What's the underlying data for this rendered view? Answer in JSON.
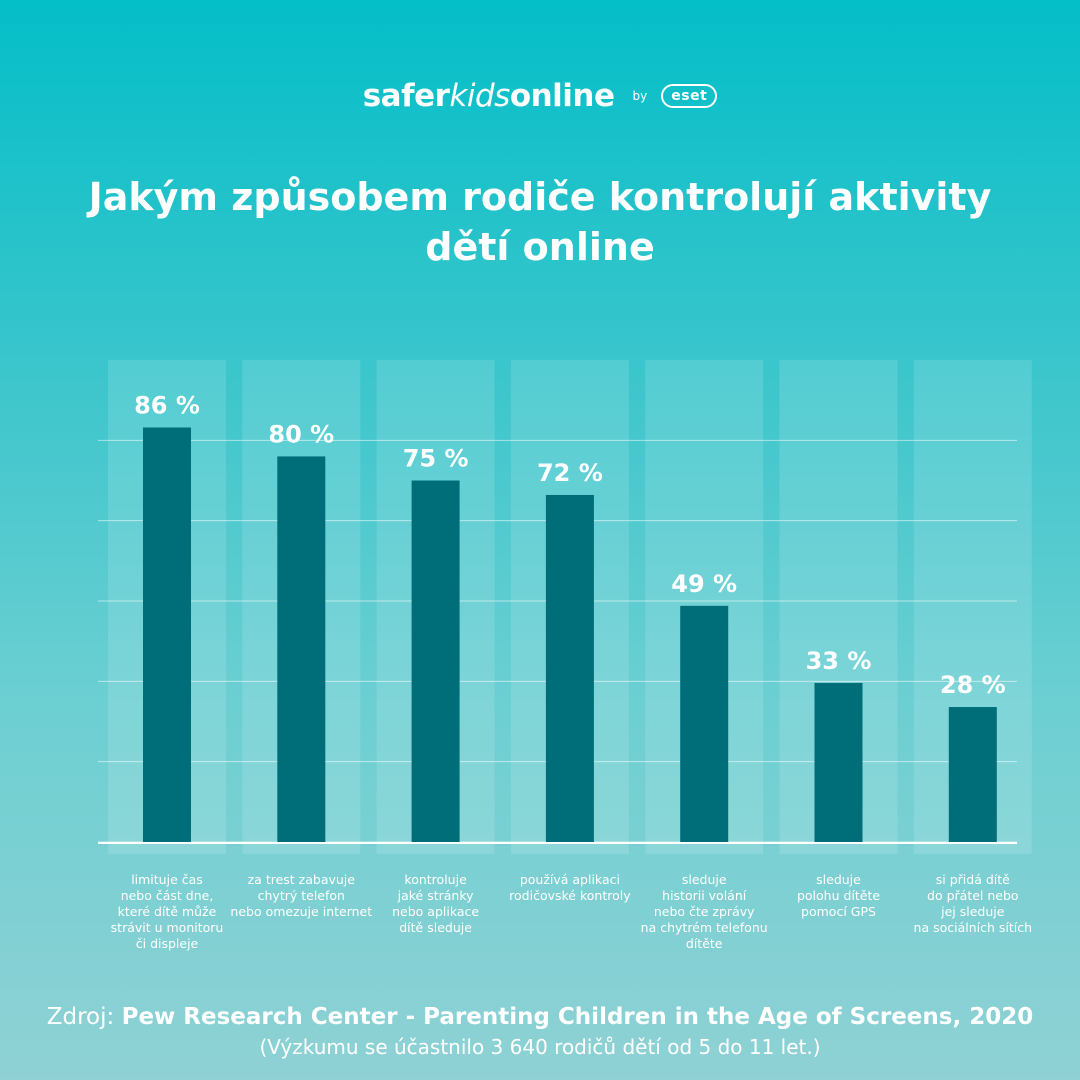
{
  "brand": {
    "name_part1": "safer",
    "name_part2": "kids",
    "name_part3": "online",
    "by": "by",
    "partner": "eset"
  },
  "title": "Jakým způsobem rodiče kontrolují aktivity dětí online",
  "chart_data": {
    "type": "bar",
    "title": "Jakým způsobem rodiče kontrolují aktivity dětí online",
    "categories": [
      "limituje čas\nnebo část dne,\nkteré dítě může\nstrávit u monitoru\nči displeje",
      "za trest zabavuje\nchytrý telefon\nnebo omezuje internet",
      "kontroluje\njaké stránky\nnebo aplikace\ndítě sleduje",
      "používá aplikaci\nrodičovské kontroly",
      "sleduje\nhistorii volání\nnebo čte zprávy\nna chytrém telefonu\ndítěte",
      "sleduje\npolohu dítěte\npomocí GPS",
      "si přidá dítě\ndo přátel nebo\njej sleduje\nna sociálních sítích"
    ],
    "values": [
      86,
      80,
      75,
      72,
      49,
      33,
      28
    ],
    "value_labels": [
      "86 %",
      "80 %",
      "75 %",
      "72 %",
      "49 %",
      "33 %",
      "28 %"
    ],
    "unit": "%",
    "ylim": [
      0,
      100
    ],
    "grid": true,
    "xlabel": "",
    "ylabel": ""
  },
  "source": {
    "prefix": "Zdroj: ",
    "title": "Pew Research Center - Parenting Children in the Age of Screens, 2020",
    "note": "(Výzkumu se účastnilo 3 640 rodičů dětí od 5 do 11 let.)"
  },
  "colors": {
    "bar": "#006e78",
    "column_background": "rgba(255,255,255,0.13)",
    "gridline": "rgba(255,255,255,0.55)",
    "text": "#ffffff"
  }
}
